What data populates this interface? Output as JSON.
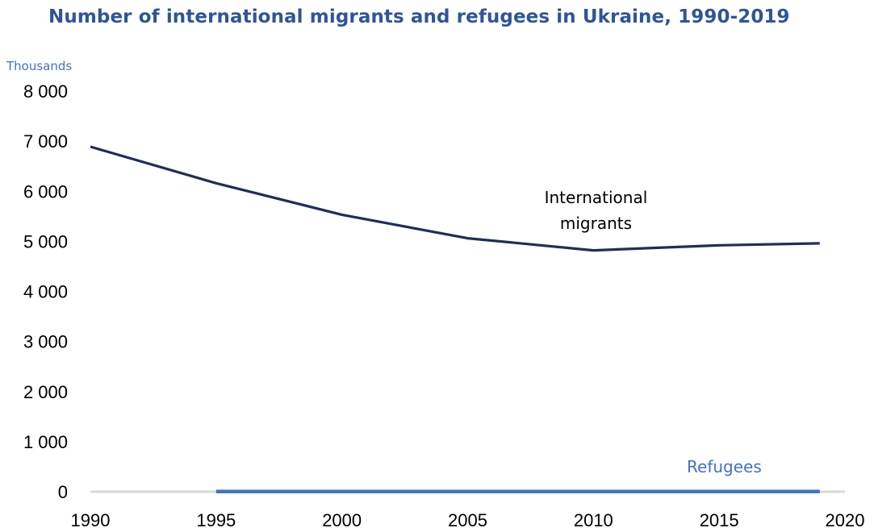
{
  "chart_data": {
    "type": "line",
    "title": "Number of international migrants and refugees in Ukraine, 1990-2019",
    "ylabel": "Thousands",
    "xlabel": "",
    "xlim": [
      1990,
      2020
    ],
    "ylim": [
      0,
      8000
    ],
    "x_ticks": [
      "1990",
      "1995",
      "2000",
      "2005",
      "2010",
      "2015",
      "2020"
    ],
    "y_ticks": [
      "0",
      "1 000",
      "2 000",
      "3 000",
      "4 000",
      "5 000",
      "6 000",
      "7 000",
      "8 000"
    ],
    "grid": false,
    "legend": "none",
    "series": [
      {
        "name": "International migrants",
        "label_lines": [
          "International",
          "migrants"
        ],
        "color": "#1f2d5a",
        "x": [
          1990,
          1995,
          2000,
          2005,
          2010,
          2015,
          2019
        ],
        "y": [
          6890,
          6160,
          5530,
          5060,
          4820,
          4920,
          4960
        ]
      },
      {
        "name": "Refugees",
        "label_lines": [
          "Refugees"
        ],
        "color": "#4472c4",
        "x": [
          1995,
          2000,
          2005,
          2010,
          2015,
          2019
        ],
        "y": [
          5,
          5,
          3,
          3,
          3,
          3
        ]
      }
    ],
    "baseline_color": "#d9d9d9"
  }
}
